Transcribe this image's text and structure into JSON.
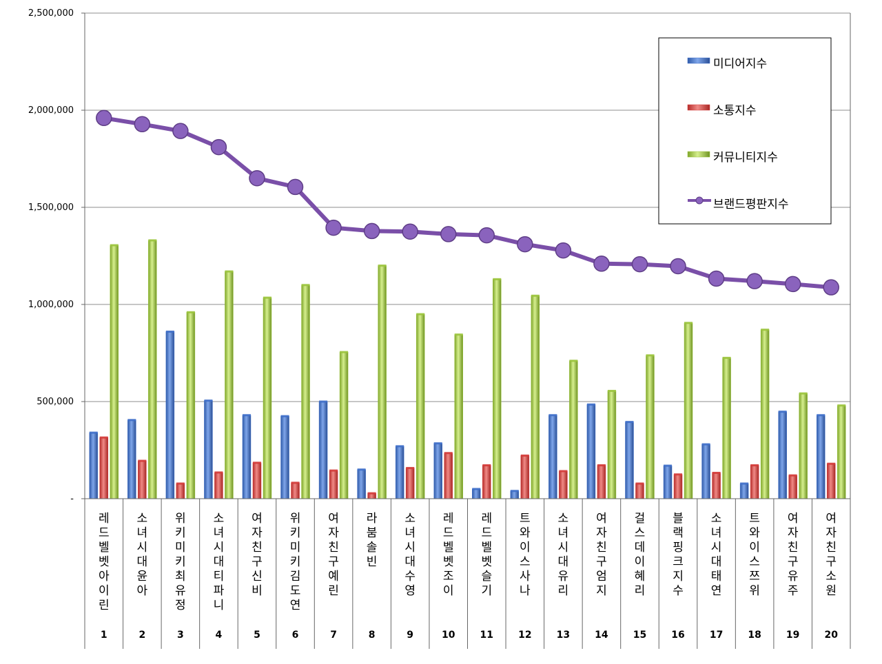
{
  "chart_data": {
    "type": "bar",
    "ylim": [
      0,
      2500000
    ],
    "y_ticks": [
      {
        "value": 2500000,
        "label": "2,500,000"
      },
      {
        "value": 2000000,
        "label": "2,000,000"
      },
      {
        "value": 1500000,
        "label": "1,500,000"
      },
      {
        "value": 1000000,
        "label": "1,000,000"
      },
      {
        "value": 500000,
        "label": "500,000"
      },
      {
        "value": 0,
        "label": "-"
      }
    ],
    "grid": true,
    "legend_position": "top-right",
    "categories": [
      "레드벨벳아이린",
      "소녀시대윤아",
      "위키미키최유정",
      "소녀시대티파니",
      "여자친구신비",
      "위키미키김도연",
      "여자친구예린",
      "라붐솔빈",
      "소녀시대수영",
      "레드벨벳조이",
      "레드벨벳슬기",
      "트와이스사나",
      "소녀시대유리",
      "여자친구엄지",
      "걸스데이혜리",
      "블랙핑크지수",
      "소녀시대태연",
      "트와이스쯔위",
      "여자친구유주",
      "여자친구소원"
    ],
    "ranks": [
      "1",
      "2",
      "3",
      "4",
      "5",
      "6",
      "7",
      "8",
      "9",
      "10",
      "11",
      "12",
      "13",
      "14",
      "15",
      "16",
      "17",
      "18",
      "19",
      "20"
    ],
    "series": [
      {
        "name": "미디어지수",
        "kind": "bar",
        "color": "#3f6fc9",
        "values": [
          340000,
          405000,
          860000,
          505000,
          430000,
          425000,
          500000,
          150000,
          270000,
          285000,
          50000,
          40000,
          430000,
          485000,
          395000,
          170000,
          280000,
          78000,
          448000,
          430000
        ]
      },
      {
        "name": "소통지수",
        "kind": "bar",
        "color": "#d43c3a",
        "values": [
          315000,
          195000,
          78000,
          135000,
          185000,
          82000,
          145000,
          28000,
          158000,
          235000,
          172000,
          222000,
          142000,
          172000,
          78000,
          125000,
          133000,
          172000,
          120000,
          180000
        ]
      },
      {
        "name": "커뮤니티지수",
        "kind": "bar",
        "color": "#9bc43d",
        "values": [
          1305000,
          1330000,
          960000,
          1170000,
          1035000,
          1100000,
          755000,
          1200000,
          950000,
          845000,
          1130000,
          1045000,
          710000,
          555000,
          738000,
          905000,
          725000,
          870000,
          542000,
          480000
        ]
      },
      {
        "name": "브랜드평판지수",
        "kind": "line",
        "color": "#7a4fa8",
        "values": [
          1960000,
          1928000,
          1893000,
          1810000,
          1650000,
          1605000,
          1395000,
          1378000,
          1375000,
          1362000,
          1356000,
          1310000,
          1278000,
          1210000,
          1207000,
          1197000,
          1133000,
          1120000,
          1105000,
          1088000
        ]
      }
    ]
  }
}
